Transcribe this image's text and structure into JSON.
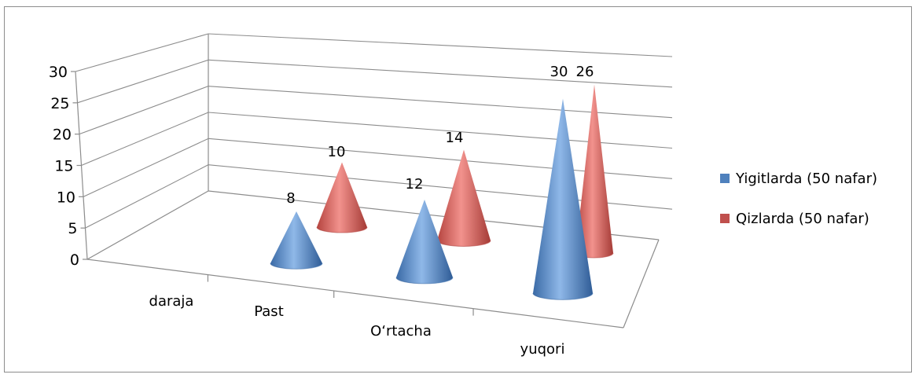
{
  "chart_data": {
    "type": "bar",
    "subtype": "3d-cone",
    "categories": [
      "daraja",
      "Past",
      "O‘rtacha",
      "yuqori"
    ],
    "series": [
      {
        "name": "Yigitlarda (50 nafar)",
        "values": [
          null,
          8,
          12,
          30
        ],
        "color": "#4f81bd"
      },
      {
        "name": "Qizlarda (50 nafar)",
        "values": [
          null,
          10,
          14,
          26
        ],
        "color": "#c0504d"
      }
    ],
    "ylim": [
      0,
      30
    ],
    "yticks": [
      "0",
      "5",
      "10",
      "15",
      "20",
      "25",
      "30"
    ],
    "grid": true,
    "legend_position": "right"
  }
}
